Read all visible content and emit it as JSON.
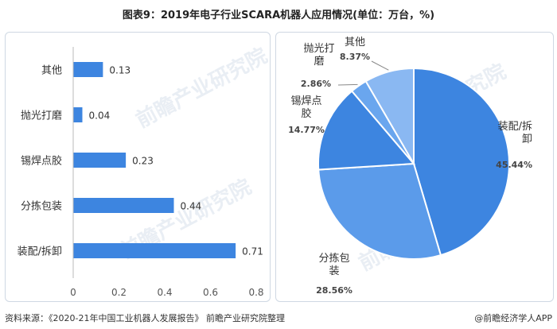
{
  "title": "图表9：2019年电子行业SCARA机器人应用情况(单位：万台，%)",
  "footer": {
    "source": "资料来源：《2020-21年中国工业机器人发展报告》 前瞻产业研究院整理",
    "logo": "@前瞻经济学人APP"
  },
  "watermark": "前瞻产业研究院",
  "colors": {
    "bar": "#3d85e0",
    "pie": [
      "#3d85e0",
      "#5b9bea",
      "#3d85e0",
      "#6aa6ee",
      "#8ab8f2"
    ]
  },
  "chart_data": [
    {
      "type": "bar",
      "orientation": "horizontal",
      "categories": [
        "其他",
        "抛光打磨",
        "锡焊点胶",
        "分拣包装",
        "装配/拆卸"
      ],
      "values": [
        0.13,
        0.04,
        0.23,
        0.44,
        0.71
      ],
      "value_labels": [
        "0.13",
        "0.04",
        "0.23",
        "0.44",
        "0.71"
      ],
      "xlim": [
        0,
        0.8
      ],
      "xticks": [
        "0",
        "0.2",
        "0.4",
        "0.6",
        "0.8"
      ],
      "grid": false
    },
    {
      "type": "pie",
      "slices": [
        {
          "label": "装配/拆卸",
          "value": 45.44,
          "value_label": "45.44%"
        },
        {
          "label": "分拣包装",
          "value": 28.56,
          "value_label": "28.56%"
        },
        {
          "label": "锡焊点胶",
          "value": 14.77,
          "value_label": "14.77%"
        },
        {
          "label": "抛光打磨",
          "value": 2.86,
          "value_label": "2.86%"
        },
        {
          "label": "其他",
          "value": 8.37,
          "value_label": "8.37%"
        }
      ]
    }
  ]
}
